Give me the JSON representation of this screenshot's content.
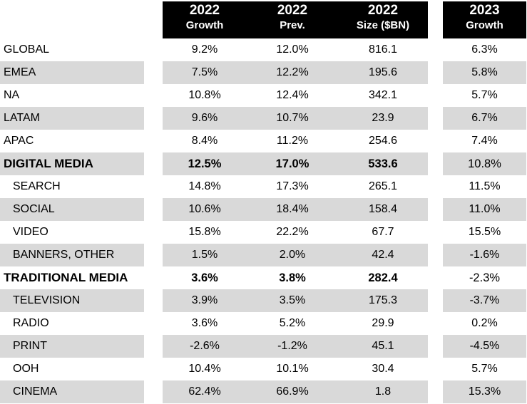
{
  "headers": [
    {
      "line1": "2022",
      "line2": "Growth"
    },
    {
      "line1": "2022",
      "line2": "Prev."
    },
    {
      "line1": "2022",
      "line2": "Size ($BN)"
    },
    {
      "line1": "2023",
      "line2": "Growth"
    }
  ],
  "rows": [
    {
      "label": "GLOBAL",
      "g22": "9.2%",
      "prev": "12.0%",
      "size": "816.1",
      "g23": "6.3%"
    },
    {
      "label": "EMEA",
      "g22": "7.5%",
      "prev": "12.2%",
      "size": "195.6",
      "g23": "5.8%"
    },
    {
      "label": "NA",
      "g22": "10.8%",
      "prev": "12.4%",
      "size": "342.1",
      "g23": "5.7%"
    },
    {
      "label": "LATAM",
      "g22": "9.6%",
      "prev": "10.7%",
      "size": "23.9",
      "g23": "6.7%"
    },
    {
      "label": "APAC",
      "g22": "8.4%",
      "prev": "11.2%",
      "size": "254.6",
      "g23": "7.4%"
    },
    {
      "label": "DIGITAL MEDIA",
      "g22": "12.5%",
      "prev": "17.0%",
      "size": "533.6",
      "g23": "10.8%"
    },
    {
      "label": "SEARCH",
      "g22": "14.8%",
      "prev": "17.3%",
      "size": "265.1",
      "g23": "11.5%"
    },
    {
      "label": "SOCIAL",
      "g22": "10.6%",
      "prev": "18.4%",
      "size": "158.4",
      "g23": "11.0%"
    },
    {
      "label": "VIDEO",
      "g22": "15.8%",
      "prev": "22.2%",
      "size": "67.7",
      "g23": "15.5%"
    },
    {
      "label": "BANNERS, OTHER",
      "g22": "1.5%",
      "prev": "2.0%",
      "size": "42.4",
      "g23": "-1.6%"
    },
    {
      "label": "TRADITIONAL MEDIA",
      "g22": "3.6%",
      "prev": "3.8%",
      "size": "282.4",
      "g23": "-2.3%"
    },
    {
      "label": "TELEVISION",
      "g22": "3.9%",
      "prev": "3.5%",
      "size": "175.3",
      "g23": "-3.7%"
    },
    {
      "label": "RADIO",
      "g22": "3.6%",
      "prev": "5.2%",
      "size": "29.9",
      "g23": "0.2%"
    },
    {
      "label": "PRINT",
      "g22": "-2.6%",
      "prev": "-1.2%",
      "size": "45.1",
      "g23": "-4.5%"
    },
    {
      "label": "OOH",
      "g22": "10.4%",
      "prev": "10.1%",
      "size": "30.4",
      "g23": "5.7%"
    },
    {
      "label": "CINEMA",
      "g22": "62.4%",
      "prev": "66.9%",
      "size": "1.8",
      "g23": "15.3%"
    }
  ]
}
